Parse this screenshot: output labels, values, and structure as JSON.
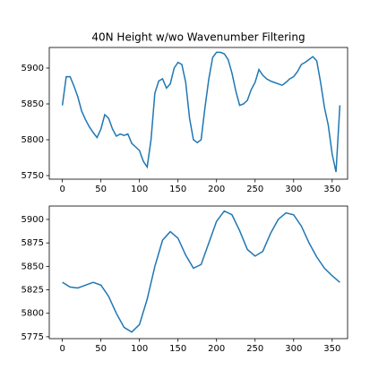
{
  "chart_data": [
    {
      "type": "line",
      "title": "40N Height w/wo Wavenumber Filtering",
      "color": "#1f77b4",
      "x": [
        0,
        5,
        10,
        15,
        20,
        25,
        30,
        35,
        40,
        45,
        50,
        55,
        60,
        65,
        70,
        75,
        80,
        85,
        90,
        95,
        100,
        105,
        110,
        115,
        120,
        125,
        130,
        135,
        140,
        145,
        150,
        155,
        160,
        165,
        170,
        175,
        180,
        185,
        190,
        195,
        200,
        205,
        210,
        215,
        220,
        225,
        230,
        235,
        240,
        245,
        250,
        255,
        260,
        265,
        270,
        275,
        280,
        285,
        290,
        295,
        300,
        305,
        310,
        315,
        320,
        325,
        330,
        335,
        340,
        345,
        350,
        355,
        360
      ],
      "values": [
        5848,
        5888,
        5888,
        5875,
        5860,
        5840,
        5828,
        5818,
        5810,
        5803,
        5815,
        5835,
        5830,
        5815,
        5805,
        5808,
        5806,
        5808,
        5795,
        5790,
        5785,
        5770,
        5762,
        5800,
        5865,
        5882,
        5885,
        5872,
        5878,
        5900,
        5908,
        5905,
        5880,
        5830,
        5800,
        5796,
        5800,
        5845,
        5885,
        5915,
        5922,
        5922,
        5920,
        5912,
        5893,
        5868,
        5848,
        5850,
        5855,
        5870,
        5880,
        5898,
        5890,
        5885,
        5882,
        5880,
        5878,
        5876,
        5880,
        5885,
        5888,
        5895,
        5905,
        5908,
        5912,
        5916,
        5910,
        5880,
        5845,
        5820,
        5780,
        5755,
        5848
      ],
      "xlim": [
        -17,
        370
      ],
      "ylim": [
        5745,
        5928.75
      ],
      "xticks": [
        0,
        50,
        100,
        150,
        200,
        250,
        300,
        350
      ],
      "yticks": [
        5750,
        5800,
        5850,
        5900
      ]
    },
    {
      "type": "line",
      "color": "#1f77b4",
      "x": [
        0,
        10,
        20,
        30,
        40,
        50,
        60,
        70,
        80,
        90,
        100,
        110,
        120,
        130,
        140,
        150,
        160,
        170,
        180,
        190,
        200,
        210,
        220,
        230,
        240,
        250,
        260,
        270,
        280,
        290,
        300,
        310,
        320,
        330,
        340,
        350,
        360
      ],
      "values": [
        5833,
        5828,
        5827,
        5830,
        5833,
        5830,
        5818,
        5800,
        5785,
        5780,
        5788,
        5815,
        5850,
        5878,
        5887,
        5880,
        5862,
        5848,
        5852,
        5875,
        5898,
        5909,
        5905,
        5888,
        5868,
        5861,
        5866,
        5885,
        5900,
        5907,
        5905,
        5893,
        5875,
        5860,
        5848,
        5840,
        5833
      ],
      "xlim": [
        -17,
        370
      ],
      "ylim": [
        5773,
        5914.3
      ],
      "xticks": [
        0,
        50,
        100,
        150,
        200,
        250,
        300,
        350
      ],
      "yticks": [
        5775,
        5800,
        5825,
        5850,
        5875,
        5900
      ]
    }
  ]
}
